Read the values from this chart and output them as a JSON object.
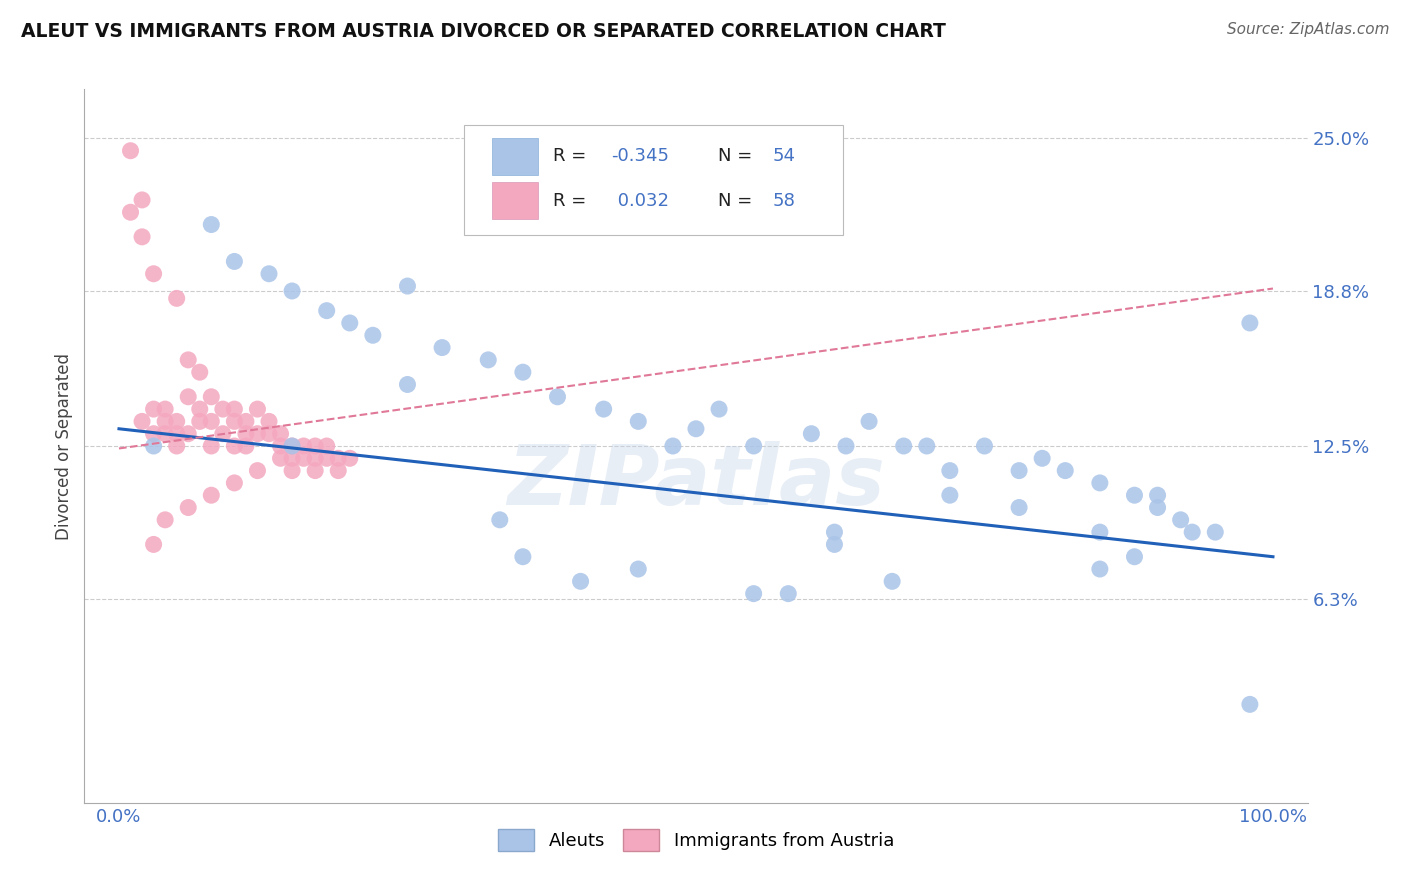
{
  "title": "ALEUT VS IMMIGRANTS FROM AUSTRIA DIVORCED OR SEPARATED CORRELATION CHART",
  "source": "Source: ZipAtlas.com",
  "ylabel": "Divorced or Separated",
  "bg_color": "#ffffff",
  "aleuts_color": "#aac4e8",
  "austria_color": "#f4a8c0",
  "aleuts_line_color": "#2060b8",
  "austria_line_color": "#e07898",
  "tick_color": "#4472c4",
  "label_color": "#333333",
  "grid_color": "#cccccc",
  "watermark": "ZIPatlas",
  "aleuts_R": "-0.345",
  "aleuts_N": "54",
  "austria_R": "0.032",
  "austria_N": "58",
  "aleuts_intercept": 13.2,
  "aleuts_slope": -0.052,
  "austria_intercept": 12.4,
  "austria_slope": 0.065,
  "ytick_vals": [
    6.3,
    12.5,
    18.8,
    25.0
  ],
  "ytick_labels": [
    "6.3%",
    "12.5%",
    "18.8%",
    "25.0%"
  ],
  "xtick_vals": [
    0,
    25,
    50,
    75,
    100
  ],
  "xtick_labels": [
    "0.0%",
    "",
    "",
    "",
    "100.0%"
  ],
  "aleuts_x": [
    8,
    10,
    13,
    15,
    18,
    20,
    22,
    25,
    28,
    32,
    35,
    38,
    42,
    45,
    50,
    52,
    55,
    60,
    63,
    65,
    68,
    70,
    72,
    75,
    78,
    80,
    82,
    85,
    88,
    90,
    92,
    95,
    98,
    48,
    33,
    62,
    85,
    90,
    40,
    58,
    88,
    93,
    3,
    98,
    67,
    72,
    85,
    78,
    62,
    55,
    45,
    35,
    25,
    15
  ],
  "aleuts_y": [
    21.5,
    20.0,
    19.5,
    18.8,
    18.0,
    17.5,
    17.0,
    19.0,
    16.5,
    16.0,
    15.5,
    14.5,
    14.0,
    13.5,
    13.2,
    14.0,
    12.5,
    13.0,
    12.5,
    13.5,
    12.5,
    12.5,
    11.5,
    12.5,
    11.5,
    12.0,
    11.5,
    11.0,
    10.5,
    10.0,
    9.5,
    9.0,
    17.5,
    12.5,
    9.5,
    9.0,
    9.0,
    10.5,
    7.0,
    6.5,
    8.0,
    9.0,
    12.5,
    2.0,
    7.0,
    10.5,
    7.5,
    10.0,
    8.5,
    6.5,
    7.5,
    8.0,
    15.0,
    12.5
  ],
  "austria_x": [
    1,
    1,
    2,
    2,
    2,
    3,
    3,
    3,
    4,
    4,
    4,
    5,
    5,
    5,
    5,
    6,
    6,
    6,
    7,
    7,
    7,
    8,
    8,
    8,
    9,
    9,
    10,
    10,
    10,
    11,
    11,
    11,
    12,
    12,
    13,
    13,
    14,
    14,
    14,
    15,
    15,
    15,
    16,
    16,
    17,
    17,
    17,
    18,
    18,
    19,
    19,
    20,
    3,
    4,
    6,
    8,
    10,
    12
  ],
  "austria_y": [
    24.5,
    22.0,
    22.5,
    13.5,
    21.0,
    19.5,
    14.0,
    13.0,
    13.5,
    13.0,
    14.0,
    18.5,
    13.5,
    13.0,
    12.5,
    16.0,
    14.5,
    13.0,
    15.5,
    14.0,
    13.5,
    14.5,
    13.5,
    12.5,
    14.0,
    13.0,
    14.0,
    13.5,
    12.5,
    13.5,
    13.0,
    12.5,
    14.0,
    13.0,
    13.5,
    13.0,
    13.0,
    12.5,
    12.0,
    12.5,
    12.0,
    11.5,
    12.5,
    12.0,
    12.5,
    12.0,
    11.5,
    12.5,
    12.0,
    12.0,
    11.5,
    12.0,
    8.5,
    9.5,
    10.0,
    10.5,
    11.0,
    11.5
  ]
}
